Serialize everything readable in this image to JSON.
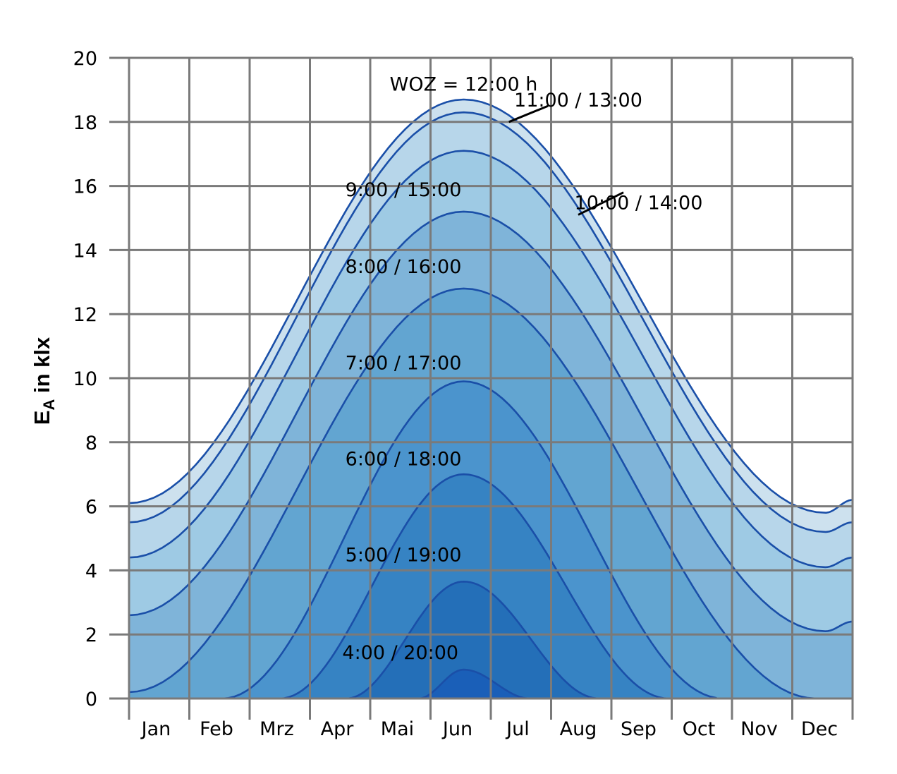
{
  "chart_data": {
    "type": "area",
    "title": "",
    "ylabel": {
      "main": "E",
      "sub": "A",
      "suffix": " in klx"
    },
    "ylim": [
      0,
      20
    ],
    "yticks": [
      "0",
      "2",
      "4",
      "6",
      "8",
      "10",
      "12",
      "14",
      "16",
      "18",
      "20"
    ],
    "categories": [
      "Jan",
      "Feb",
      "Mrz",
      "Apr",
      "Mai",
      "Jun",
      "Jul",
      "Aug",
      "Sep",
      "Oct",
      "Nov",
      "Dec"
    ],
    "grid": true,
    "x_domain": [
      0,
      12
    ],
    "series": [
      {
        "name": "WOZ = 12:00 h",
        "peak_x": 5.55,
        "peak_value": 18.7,
        "x_start": 0,
        "x_end": 12,
        "edge_start": 6.1,
        "edge_end": 6.2,
        "min_value": 5.8,
        "min_x": 11.55
      },
      {
        "name": "11:00 / 13:00",
        "peak_x": 5.55,
        "peak_value": 18.3,
        "x_start": 0,
        "x_end": 12,
        "edge_start": 5.5,
        "edge_end": 5.5,
        "min_value": 5.2,
        "min_x": 11.55
      },
      {
        "name": "10:00 / 14:00",
        "peak_x": 5.55,
        "peak_value": 17.1,
        "x_start": 0,
        "x_end": 12,
        "edge_start": 4.4,
        "edge_end": 4.4,
        "min_value": 4.1,
        "min_x": 11.55
      },
      {
        "name": "9:00 / 15:00",
        "peak_x": 5.55,
        "peak_value": 15.2,
        "x_start": 0,
        "x_end": 12,
        "edge_start": 2.6,
        "edge_end": 2.4,
        "min_value": 2.1,
        "min_x": 11.55
      },
      {
        "name": "8:00 / 16:00",
        "peak_x": 5.55,
        "peak_value": 12.8,
        "x_start": 0,
        "x_end": 11.4,
        "edge_start": 0.2,
        "edge_end": 0
      },
      {
        "name": "7:00 / 17:00",
        "peak_x": 5.55,
        "peak_value": 9.9,
        "x_start": 1.55,
        "x_end": 9.85
      },
      {
        "name": "6:00 / 18:00",
        "peak_x": 5.55,
        "peak_value": 7.0,
        "x_start": 2.5,
        "x_end": 8.95
      },
      {
        "name": "5:00 / 19:00",
        "peak_x": 5.55,
        "peak_value": 3.65,
        "x_start": 3.6,
        "x_end": 7.8
      },
      {
        "name": "4:00 / 20:00",
        "peak_x": 5.55,
        "peak_value": 0.9,
        "x_start": 4.8,
        "x_end": 6.65
      }
    ],
    "annotations": [
      {
        "text": "WOZ = 12:00 h",
        "x": 5.55,
        "y": 19.2
      },
      {
        "text": "11:00 / 13:00",
        "x": 7.45,
        "y": 18.7
      },
      {
        "text": "10:00 / 14:00",
        "x": 8.45,
        "y": 15.5
      },
      {
        "text": "9:00 / 15:00",
        "x": 4.55,
        "y": 15.9
      },
      {
        "text": "8:00 / 16:00",
        "x": 4.55,
        "y": 13.5
      },
      {
        "text": "7:00 / 17:00",
        "x": 4.55,
        "y": 10.5
      },
      {
        "text": "6:00 / 18:00",
        "x": 4.55,
        "y": 7.5
      },
      {
        "text": "5:00 / 19:00",
        "x": 4.55,
        "y": 4.5
      },
      {
        "text": "4:00 / 20:00",
        "x": 4.5,
        "y": 1.45
      }
    ],
    "leader_lines": [
      {
        "label": "11:00 / 13:00",
        "x_from": 6.3,
        "y_from": 18.0,
        "x_to": 6.95,
        "y_to": 18.5
      },
      {
        "label": "10:00 / 14:00",
        "x_from": 7.45,
        "y_from": 15.1,
        "x_to": 8.2,
        "y_to": 15.8
      }
    ],
    "colors": {
      "fills": [
        "#cde1ee",
        "#b7d6ea",
        "#9ecae4",
        "#7fb4d9",
        "#62a5d1",
        "#4b94cd",
        "#3683c3",
        "#246fb8",
        "#1a5fb8"
      ],
      "line": "#1a4fa8",
      "grid": "#7a7a7a",
      "text": "#000000"
    }
  }
}
